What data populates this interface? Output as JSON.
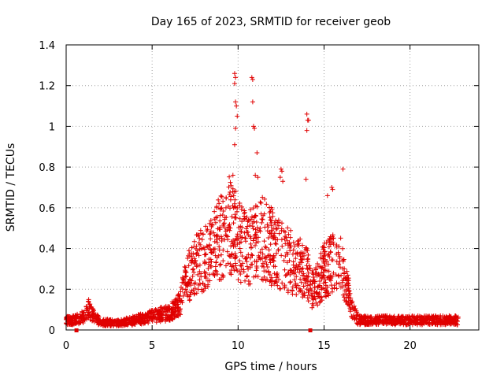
{
  "chart_data": {
    "type": "scatter",
    "title": "Day 165 of 2023, SRMTID for receiver geob",
    "xlabel": "GPS time / hours",
    "ylabel": "SRMTID / TECUs",
    "xlim": [
      0,
      24
    ],
    "ylim": [
      0,
      1.4
    ],
    "xticks": [
      0,
      5,
      10,
      15,
      20
    ],
    "yticks": [
      0,
      0.2,
      0.4,
      0.6,
      0.8,
      1,
      1.2,
      1.4
    ],
    "grid": true,
    "marker": "plus",
    "color": "#e00000",
    "profile": [
      [
        0.0,
        0.05
      ],
      [
        0.5,
        0.05
      ],
      [
        1.0,
        0.07
      ],
      [
        1.3,
        0.11
      ],
      [
        1.6,
        0.07
      ],
      [
        2.0,
        0.04
      ],
      [
        3.0,
        0.035
      ],
      [
        4.0,
        0.05
      ],
      [
        5.0,
        0.07
      ],
      [
        6.0,
        0.09
      ],
      [
        6.6,
        0.13
      ],
      [
        7.0,
        0.22
      ],
      [
        7.5,
        0.28
      ],
      [
        8.0,
        0.32
      ],
      [
        8.5,
        0.36
      ],
      [
        9.0,
        0.4
      ],
      [
        9.5,
        0.46
      ],
      [
        10.0,
        0.4
      ],
      [
        10.5,
        0.36
      ],
      [
        11.0,
        0.38
      ],
      [
        11.5,
        0.4
      ],
      [
        12.0,
        0.36
      ],
      [
        12.5,
        0.33
      ],
      [
        13.0,
        0.3
      ],
      [
        13.5,
        0.28
      ],
      [
        14.0,
        0.25
      ],
      [
        14.3,
        0.18
      ],
      [
        14.6,
        0.2
      ],
      [
        15.0,
        0.26
      ],
      [
        15.5,
        0.3
      ],
      [
        16.0,
        0.28
      ],
      [
        16.5,
        0.14
      ],
      [
        17.0,
        0.05
      ],
      [
        18.0,
        0.05
      ],
      [
        19.0,
        0.05
      ],
      [
        20.0,
        0.05
      ],
      [
        21.0,
        0.05
      ],
      [
        22.0,
        0.05
      ],
      [
        22.8,
        0.05
      ]
    ],
    "notable_points": [
      [
        9.8,
        1.26
      ],
      [
        9.85,
        1.24
      ],
      [
        9.8,
        1.21
      ],
      [
        9.85,
        1.12
      ],
      [
        9.9,
        1.1
      ],
      [
        9.95,
        1.05
      ],
      [
        9.85,
        0.99
      ],
      [
        9.8,
        0.91
      ],
      [
        9.7,
        0.76
      ],
      [
        10.8,
        1.24
      ],
      [
        10.85,
        1.23
      ],
      [
        10.85,
        1.12
      ],
      [
        10.9,
        1.0
      ],
      [
        10.95,
        0.99
      ],
      [
        11.1,
        0.87
      ],
      [
        11.0,
        0.76
      ],
      [
        11.15,
        0.75
      ],
      [
        12.5,
        0.79
      ],
      [
        12.55,
        0.78
      ],
      [
        12.45,
        0.75
      ],
      [
        12.6,
        0.73
      ],
      [
        14.0,
        1.06
      ],
      [
        14.05,
        1.03
      ],
      [
        14.1,
        1.03
      ],
      [
        14.0,
        0.98
      ],
      [
        13.95,
        0.74
      ],
      [
        15.45,
        0.7
      ],
      [
        15.5,
        0.69
      ],
      [
        16.1,
        0.79
      ],
      [
        15.2,
        0.66
      ]
    ],
    "flag_markers": [
      0.6,
      14.2
    ],
    "point_count": 2200
  }
}
